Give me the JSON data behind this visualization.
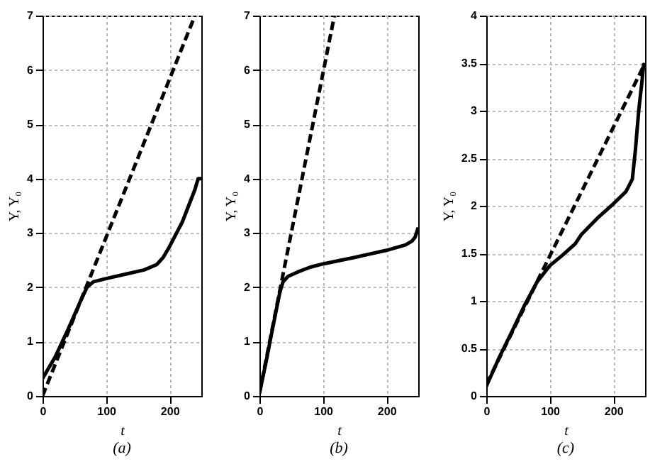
{
  "chart_data": [
    {
      "type": "line",
      "xlabel": "t",
      "ylabel": "Y, Y₀",
      "annotations": [
        "(a)"
      ],
      "xlim": [
        0,
        250
      ],
      "xticks": [
        0,
        100,
        200
      ],
      "ylim": [
        0,
        7
      ],
      "yticks": [
        0,
        1,
        2,
        3,
        4,
        5,
        6,
        7
      ],
      "grid": true,
      "series": [
        {
          "color": "#000000",
          "line_style": "solid",
          "x": [
            0,
            20,
            40,
            60,
            70,
            80,
            100,
            130,
            160,
            180,
            190,
            200,
            220,
            240,
            245,
            250
          ],
          "values": [
            0.32,
            0.72,
            1.22,
            1.75,
            2.0,
            2.1,
            2.16,
            2.24,
            2.32,
            2.42,
            2.55,
            2.75,
            3.2,
            3.8,
            4.0,
            4.0
          ]
        },
        {
          "color": "#000000",
          "line_style": "dashed",
          "x": [
            0,
            240
          ],
          "values": [
            0.0,
            7.0
          ]
        }
      ]
    },
    {
      "type": "line",
      "xlabel": "t",
      "ylabel": "Y, Y₀",
      "annotations": [
        "(b)"
      ],
      "xlim": [
        0,
        250
      ],
      "xticks": [
        0,
        100,
        200
      ],
      "ylim": [
        0,
        7
      ],
      "yticks": [
        0,
        1,
        2,
        3,
        4,
        5,
        6,
        7
      ],
      "grid": true,
      "series": [
        {
          "color": "#000000",
          "line_style": "solid",
          "x": [
            0,
            10,
            20,
            32,
            37,
            45,
            60,
            80,
            100,
            150,
            200,
            230,
            240,
            245,
            250
          ],
          "values": [
            0.05,
            0.6,
            1.2,
            1.9,
            2.1,
            2.2,
            2.28,
            2.37,
            2.43,
            2.55,
            2.68,
            2.78,
            2.85,
            2.92,
            3.1
          ]
        },
        {
          "color": "#000000",
          "line_style": "dashed",
          "x": [
            0,
            118
          ],
          "values": [
            0.05,
            7.0
          ]
        }
      ]
    },
    {
      "type": "line",
      "xlabel": "t",
      "ylabel": "Y, Y₀",
      "annotations": [
        "(c)"
      ],
      "xlim": [
        0,
        250
      ],
      "xticks": [
        0,
        100,
        200
      ],
      "ylim": [
        0,
        4
      ],
      "yticks": [
        0,
        0.5,
        1,
        1.5,
        2,
        2.5,
        3,
        3.5,
        4
      ],
      "grid": true,
      "series": [
        {
          "color": "#000000",
          "line_style": "solid",
          "x": [
            0,
            20,
            40,
            60,
            80,
            100,
            120,
            140,
            150,
            175,
            200,
            220,
            230,
            235,
            240,
            245,
            248
          ],
          "values": [
            0.1,
            0.4,
            0.67,
            0.95,
            1.2,
            1.37,
            1.48,
            1.6,
            1.7,
            1.87,
            2.02,
            2.15,
            2.28,
            2.6,
            3.0,
            3.3,
            3.5
          ]
        },
        {
          "color": "#000000",
          "line_style": "dashed",
          "x": [
            0,
            250
          ],
          "values": [
            0.12,
            3.5
          ]
        }
      ]
    }
  ]
}
